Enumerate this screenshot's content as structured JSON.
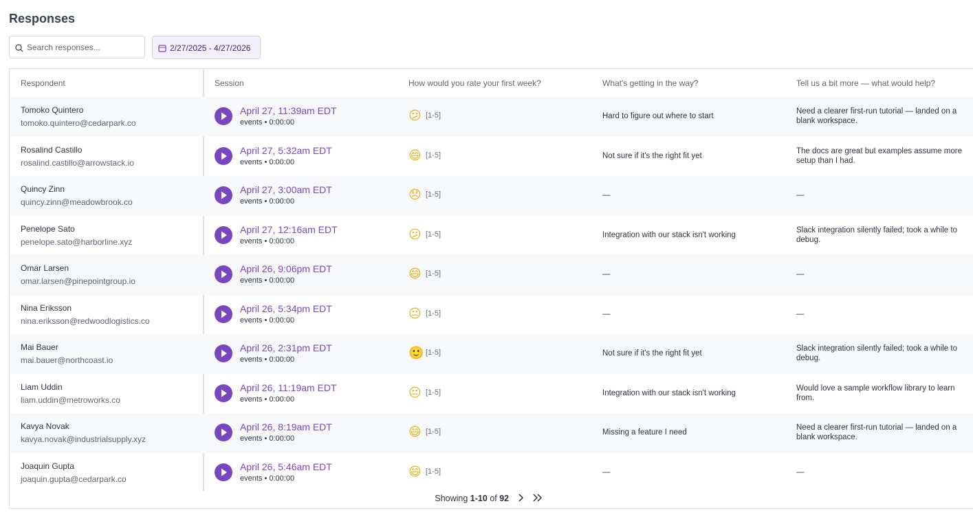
{
  "header": {
    "title": "Responses"
  },
  "filters": {
    "search_placeholder": "Search responses...",
    "date_range": "2/27/2025 - 4/27/2026"
  },
  "table": {
    "columns": [
      "Respondent",
      "Session",
      "How would you rate your first week?",
      "What's getting in the way?",
      "Tell us a bit more — what would help?"
    ],
    "rows": [
      {
        "name": "Tomoko Quintero",
        "email": "tomoko.quintero@cedarpark.co",
        "session": "April 27, 11:39am EDT",
        "meta": "events • 0:00:00",
        "emoji": "😕",
        "scale": "[1-5]",
        "blocker": "Hard to figure out where to start",
        "more": "Need a clearer first-run tutorial — landed on a blank workspace."
      },
      {
        "name": "Rosalind Castillo",
        "email": "rosalind.castillo@arrowstack.io",
        "session": "April 27, 5:32am EDT",
        "meta": "events • 0:00:00",
        "emoji": "😄",
        "scale": "[1-5]",
        "blocker": "Not sure if it's the right fit yet",
        "more": "The docs are great but examples assume more setup than I had."
      },
      {
        "name": "Quincy Zinn",
        "email": "quincy.zinn@meadowbrook.co",
        "session": "April 27, 3:00am EDT",
        "meta": "events • 0:00:00",
        "emoji": "😞",
        "scale": "[1-5]",
        "blocker": "—",
        "more": "—"
      },
      {
        "name": "Penelope Sato",
        "email": "penelope.sato@harborline.xyz",
        "session": "April 27, 12:16am EDT",
        "meta": "events • 0:00:00",
        "emoji": "😕",
        "scale": "[1-5]",
        "blocker": "Integration with our stack isn't working",
        "more": "Slack integration silently failed; took a while to debug."
      },
      {
        "name": "Omar Larsen",
        "email": "omar.larsen@pinepointgroup.io",
        "session": "April 26, 9:06pm EDT",
        "meta": "events • 0:00:00",
        "emoji": "😄",
        "scale": "[1-5]",
        "blocker": "—",
        "more": "—"
      },
      {
        "name": "Nina Eriksson",
        "email": "nina.eriksson@redwoodlogistics.co",
        "session": "April 26, 5:34pm EDT",
        "meta": "events • 0:00:00",
        "emoji": "😐",
        "scale": "[1-5]",
        "blocker": "—",
        "more": "—"
      },
      {
        "name": "Mai Bauer",
        "email": "mai.bauer@northcoast.io",
        "session": "April 26, 2:31pm EDT",
        "meta": "events • 0:00:00",
        "emoji": "🙂",
        "scale": "[1-5]",
        "blocker": "Not sure if it's the right fit yet",
        "more": "Slack integration silently failed; took a while to debug."
      },
      {
        "name": "Liam Uddin",
        "email": "liam.uddin@metroworks.co",
        "session": "April 26, 11:19am EDT",
        "meta": "events • 0:00:00",
        "emoji": "😐",
        "scale": "[1-5]",
        "blocker": "Integration with our stack isn't working",
        "more": "Would love a sample workflow library to learn from."
      },
      {
        "name": "Kavya Novak",
        "email": "kavya.novak@industrialsupply.xyz",
        "session": "April 26, 8:19am EDT",
        "meta": "events • 0:00:00",
        "emoji": "😄",
        "scale": "[1-5]",
        "blocker": "Missing a feature I need",
        "more": "Need a clearer first-run tutorial — landed on a blank workspace."
      },
      {
        "name": "Joaquin Gupta",
        "email": "joaquin.gupta@cedarpark.co",
        "session": "April 26, 5:46am EDT",
        "meta": "events • 0:00:00",
        "emoji": "😄",
        "scale": "[1-5]",
        "blocker": "—",
        "more": "—"
      }
    ]
  },
  "pagination": {
    "prefix": "Showing",
    "range": "1-10",
    "of": "of",
    "total": "92"
  }
}
